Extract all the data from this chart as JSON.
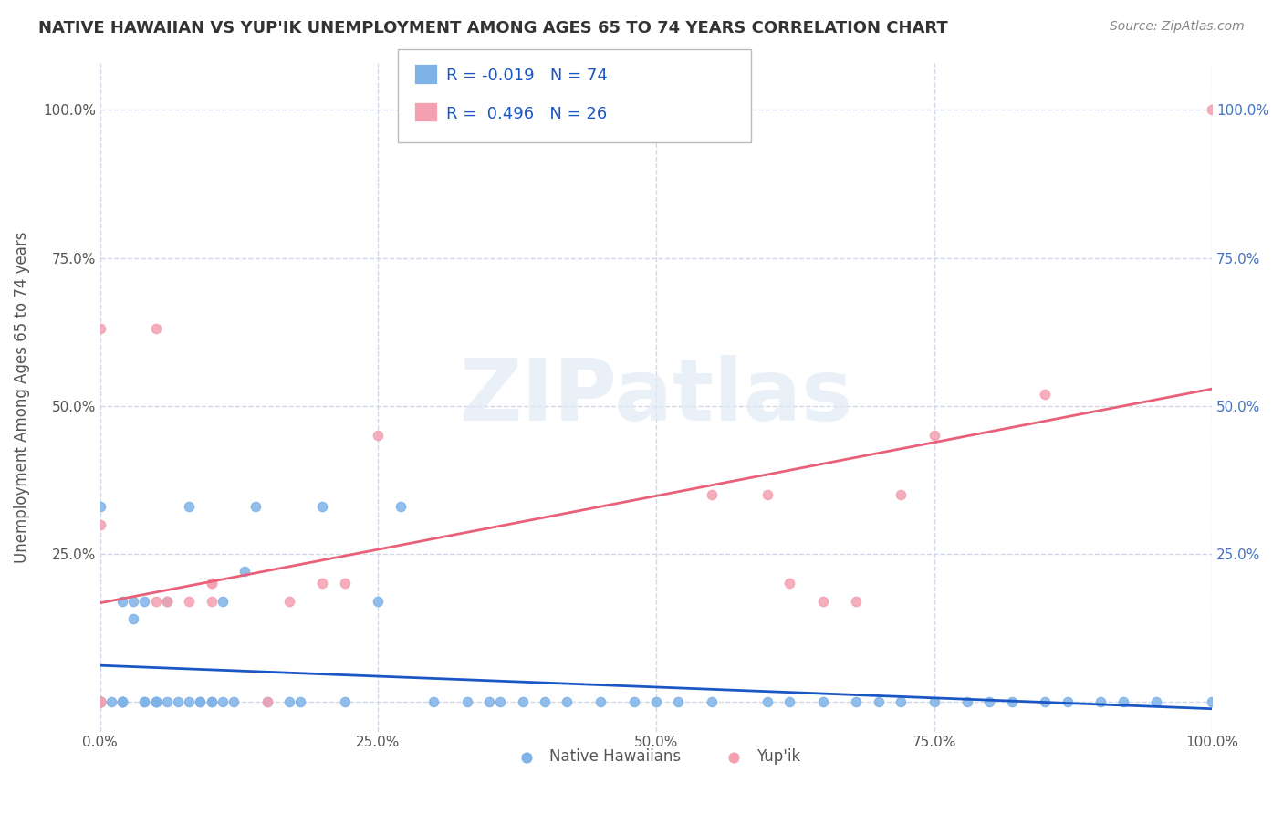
{
  "title": "NATIVE HAWAIIAN VS YUP'IK UNEMPLOYMENT AMONG AGES 65 TO 74 YEARS CORRELATION CHART",
  "source": "Source: ZipAtlas.com",
  "ylabel": "Unemployment Among Ages 65 to 74 years",
  "xlim": [
    0.0,
    1.0
  ],
  "ylim": [
    -0.05,
    1.08
  ],
  "xtick_labels": [
    "0.0%",
    "25.0%",
    "50.0%",
    "75.0%",
    "100.0%"
  ],
  "xtick_vals": [
    0.0,
    0.25,
    0.5,
    0.75,
    1.0
  ],
  "nh_color": "#7fb3e8",
  "yupik_color": "#f4a0b0",
  "nh_line_color": "#1a56c4",
  "yupik_line_color": "#e8607a",
  "legend_r_nh": "-0.019",
  "legend_n_nh": "74",
  "legend_r_yupik": "0.496",
  "legend_n_yupik": "26",
  "background_color": "#ffffff",
  "grid_color": "#d0d8e8",
  "nh_x": [
    0.0,
    0.0,
    0.0,
    0.0,
    0.0,
    0.0,
    0.0,
    0.0,
    0.0,
    0.0,
    0.0,
    0.01,
    0.02,
    0.02,
    0.02,
    0.02,
    0.02,
    0.03,
    0.03,
    0.04,
    0.04,
    0.04,
    0.05,
    0.05,
    0.05,
    0.06,
    0.06,
    0.07,
    0.08,
    0.08,
    0.09,
    0.09,
    0.1,
    0.1,
    0.11,
    0.11,
    0.12,
    0.13,
    0.14,
    0.15,
    0.17,
    0.18,
    0.2,
    0.22,
    0.25,
    0.27,
    0.3,
    0.33,
    0.35,
    0.36,
    0.38,
    0.4,
    0.42,
    0.45,
    0.48,
    0.5,
    0.52,
    0.55,
    0.6,
    0.62,
    0.65,
    0.68,
    0.7,
    0.72,
    0.75,
    0.78,
    0.8,
    0.82,
    0.85,
    0.87,
    0.9,
    0.92,
    0.95,
    1.0
  ],
  "nh_y": [
    0.0,
    0.0,
    0.0,
    0.0,
    0.0,
    0.0,
    0.0,
    0.0,
    0.0,
    0.0,
    0.33,
    0.0,
    0.0,
    0.0,
    0.0,
    0.0,
    0.17,
    0.14,
    0.17,
    0.0,
    0.0,
    0.17,
    0.0,
    0.0,
    0.0,
    0.0,
    0.17,
    0.0,
    0.0,
    0.33,
    0.0,
    0.0,
    0.0,
    0.0,
    0.0,
    0.17,
    0.0,
    0.22,
    0.33,
    0.0,
    0.0,
    0.0,
    0.33,
    0.0,
    0.17,
    0.33,
    0.0,
    0.0,
    0.0,
    0.0,
    0.0,
    0.0,
    0.0,
    0.0,
    0.0,
    0.0,
    0.0,
    0.0,
    0.0,
    0.0,
    0.0,
    0.0,
    0.0,
    0.0,
    0.0,
    0.0,
    0.0,
    0.0,
    0.0,
    0.0,
    0.0,
    0.0,
    0.0,
    0.0
  ],
  "yupik_x": [
    0.0,
    0.0,
    0.0,
    0.0,
    0.0,
    0.05,
    0.05,
    0.06,
    0.08,
    0.1,
    0.1,
    0.1,
    0.15,
    0.17,
    0.2,
    0.22,
    0.25,
    0.55,
    0.6,
    0.62,
    0.65,
    0.68,
    0.72,
    0.75,
    0.85,
    1.0
  ],
  "yupik_y": [
    0.0,
    0.0,
    0.0,
    0.3,
    0.63,
    0.63,
    0.17,
    0.17,
    0.17,
    0.17,
    0.2,
    0.2,
    0.0,
    0.17,
    0.2,
    0.2,
    0.45,
    0.35,
    0.35,
    0.2,
    0.17,
    0.17,
    0.35,
    0.45,
    0.52,
    1.0
  ]
}
